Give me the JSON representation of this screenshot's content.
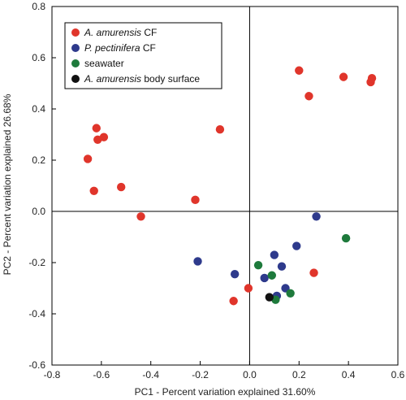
{
  "chart_data": {
    "type": "scatter",
    "xlabel": "PC1 - Percent variation explained 31.60%",
    "ylabel": "PC2 - Percent variation explained 26.68%",
    "xlim": [
      -0.8,
      0.6
    ],
    "ylim": [
      -0.6,
      0.8
    ],
    "x_ticks": [
      "-0.8",
      "-0.6",
      "-0.4",
      "-0.2",
      "0.0",
      "0.2",
      "0.4",
      "0.6"
    ],
    "y_ticks": [
      "-0.6",
      "-0.4",
      "-0.2",
      "0.0",
      "0.2",
      "0.4",
      "0.6",
      "0.8"
    ],
    "legend_position": "top-left",
    "series": [
      {
        "name_italic": "A. amurensis",
        "name_suffix": " CF",
        "color": "#e0352b",
        "points": [
          [
            -0.62,
            0.325
          ],
          [
            -0.59,
            0.29
          ],
          [
            -0.615,
            0.28
          ],
          [
            -0.655,
            0.205
          ],
          [
            -0.63,
            0.08
          ],
          [
            -0.52,
            0.095
          ],
          [
            -0.44,
            -0.02
          ],
          [
            -0.22,
            0.045
          ],
          [
            -0.12,
            0.32
          ],
          [
            0.2,
            0.55
          ],
          [
            0.24,
            0.45
          ],
          [
            0.38,
            0.525
          ],
          [
            0.49,
            0.505
          ],
          [
            0.495,
            0.52
          ],
          [
            0.26,
            -0.24
          ],
          [
            -0.065,
            -0.35
          ],
          [
            -0.005,
            -0.3
          ]
        ]
      },
      {
        "name_italic": "P. pectinifera",
        "name_suffix": " CF",
        "color": "#2e3a8c",
        "points": [
          [
            -0.21,
            -0.195
          ],
          [
            -0.06,
            -0.245
          ],
          [
            0.06,
            -0.26
          ],
          [
            0.1,
            -0.17
          ],
          [
            0.13,
            -0.215
          ],
          [
            0.145,
            -0.3
          ],
          [
            0.19,
            -0.135
          ],
          [
            0.27,
            -0.02
          ],
          [
            0.11,
            -0.33
          ]
        ]
      },
      {
        "name_italic": "",
        "name_suffix": "seawater",
        "color": "#1e7a3c",
        "points": [
          [
            0.035,
            -0.21
          ],
          [
            0.09,
            -0.25
          ],
          [
            0.105,
            -0.345
          ],
          [
            0.165,
            -0.32
          ],
          [
            0.39,
            -0.105
          ]
        ]
      },
      {
        "name_italic": "A. amurensis",
        "name_suffix": " body surface",
        "color": "#111111",
        "points": [
          [
            0.08,
            -0.335
          ]
        ]
      }
    ]
  }
}
